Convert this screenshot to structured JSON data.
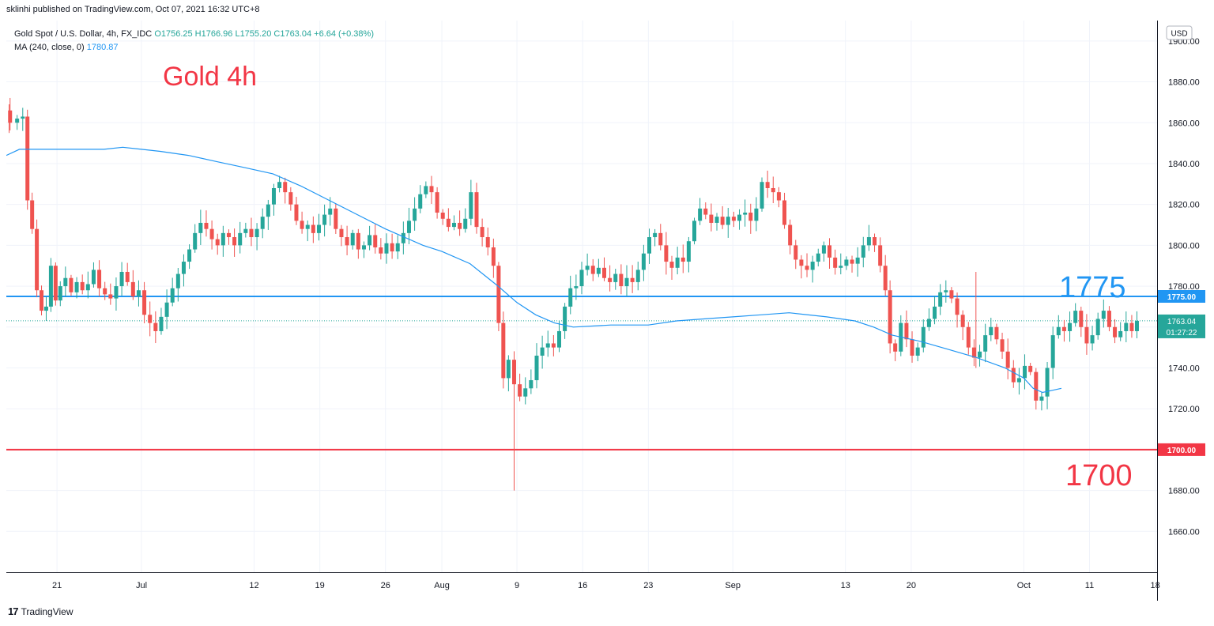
{
  "header": {
    "published": "sklinhi published on TradingView.com, Oct 07, 2021 16:32 UTC+8"
  },
  "legend": {
    "symbol": "Gold Spot / U.S. Dollar, 4h, FX_IDC",
    "ohlc": "O1756.25 H1766.96 L1755.20 C1763.04 +6.64 (+0.38%)",
    "ma_label": "MA (240, close, 0)",
    "ma_value": "1780.87"
  },
  "footer": {
    "logo": "17",
    "brand": "TradingView"
  },
  "colors": {
    "up": "#26a69a",
    "down": "#ef5350",
    "ma": "#2196f3",
    "line_blue": "#2196f3",
    "line_red": "#f23645",
    "grid": "#f0f3fa"
  },
  "chart_data": {
    "type": "candlestick",
    "title": "Gold 4h",
    "currency": "USD",
    "ylim": [
      1640,
      1910
    ],
    "y_ticks": [
      1660,
      1680,
      1700,
      1720,
      1740,
      1760,
      1780,
      1800,
      1820,
      1840,
      1860,
      1880,
      1900
    ],
    "y_tick_labels": [
      "1660.00",
      "1680.00",
      "1700.00",
      "1720.00",
      "1740.00",
      "1760.00",
      "1780.00",
      "1800.00",
      "1820.00",
      "1840.00",
      "1860.00",
      "1880.00",
      "1900.00"
    ],
    "x_ticks": [
      "21",
      "Jul",
      "12",
      "19",
      "26",
      "Aug",
      "9",
      "16",
      "23",
      "Sep",
      "13",
      "20",
      "Oct",
      "11",
      "18"
    ],
    "x_tick_values": [
      21,
      30,
      42,
      49,
      56,
      62,
      70,
      77,
      84,
      93,
      105,
      112,
      124,
      131,
      138
    ],
    "xlim": [
      15.6,
      138.2
    ],
    "x_unit": "day index (2021-06-01 = 1)",
    "last_price": "1763.04",
    "countdown": "01:27:22",
    "horizontal_lines": [
      {
        "price": 1775,
        "label": "1775",
        "axis_label": "1775.00",
        "color": "#2196f3"
      },
      {
        "price": 1700,
        "label": "1700",
        "axis_label": "1700.00",
        "color": "#f23645"
      }
    ],
    "ma_series": {
      "name": "MA (240, close, 0)",
      "points": [
        [
          15.6,
          1844
        ],
        [
          17,
          1847
        ],
        [
          19,
          1847
        ],
        [
          22,
          1847
        ],
        [
          26,
          1847
        ],
        [
          28,
          1848
        ],
        [
          30,
          1847
        ],
        [
          32,
          1846
        ],
        [
          35,
          1844
        ],
        [
          38,
          1841
        ],
        [
          41,
          1838
        ],
        [
          44,
          1835
        ],
        [
          47,
          1829
        ],
        [
          50,
          1822
        ],
        [
          53,
          1815
        ],
        [
          56,
          1808
        ],
        [
          60,
          1800
        ],
        [
          62,
          1797
        ],
        [
          65,
          1791
        ],
        [
          68,
          1780
        ],
        [
          70,
          1772
        ],
        [
          72,
          1766
        ],
        [
          74,
          1762
        ],
        [
          76,
          1760
        ],
        [
          80,
          1761
        ],
        [
          84,
          1761
        ],
        [
          87,
          1763
        ],
        [
          90,
          1764
        ],
        [
          93,
          1765
        ],
        [
          96,
          1766
        ],
        [
          99,
          1767
        ],
        [
          103,
          1765
        ],
        [
          106,
          1763
        ],
        [
          108,
          1760
        ],
        [
          110,
          1756
        ],
        [
          113,
          1753
        ],
        [
          116,
          1749
        ],
        [
          119,
          1745
        ],
        [
          122,
          1740
        ],
        [
          124,
          1735
        ],
        [
          125,
          1730
        ],
        [
          126,
          1728
        ],
        [
          127,
          1729
        ],
        [
          128,
          1730
        ]
      ]
    },
    "price_path": [
      [
        15.6,
        1866
      ],
      [
        16.4,
        1860
      ],
      [
        17.1,
        1862
      ],
      [
        17.6,
        1863
      ],
      [
        18.1,
        1822
      ],
      [
        18.6,
        1808
      ],
      [
        19.1,
        1778
      ],
      [
        19.6,
        1768
      ],
      [
        20.1,
        1770
      ],
      [
        20.6,
        1790
      ],
      [
        21.1,
        1773
      ],
      [
        21.6,
        1780
      ],
      [
        22.2,
        1784
      ],
      [
        22.8,
        1777
      ],
      [
        23.4,
        1782
      ],
      [
        24,
        1778
      ],
      [
        24.6,
        1781
      ],
      [
        25.2,
        1788
      ],
      [
        25.8,
        1779
      ],
      [
        26.4,
        1776
      ],
      [
        27,
        1774
      ],
      [
        27.6,
        1780
      ],
      [
        28.2,
        1787
      ],
      [
        28.8,
        1782
      ],
      [
        29.4,
        1775
      ],
      [
        30,
        1778
      ],
      [
        30.6,
        1766
      ],
      [
        31.2,
        1762
      ],
      [
        31.8,
        1758
      ],
      [
        32.4,
        1765
      ],
      [
        33,
        1772
      ],
      [
        33.6,
        1779
      ],
      [
        34.2,
        1786
      ],
      [
        34.8,
        1792
      ],
      [
        35.4,
        1798
      ],
      [
        36,
        1806
      ],
      [
        36.6,
        1811
      ],
      [
        37.2,
        1808
      ],
      [
        37.8,
        1803
      ],
      [
        38.4,
        1800
      ],
      [
        39,
        1806
      ],
      [
        39.6,
        1804
      ],
      [
        40.2,
        1800
      ],
      [
        40.8,
        1806
      ],
      [
        41.4,
        1808
      ],
      [
        42,
        1804
      ],
      [
        42.6,
        1808
      ],
      [
        43.2,
        1814
      ],
      [
        43.8,
        1820
      ],
      [
        44.4,
        1828
      ],
      [
        45,
        1831
      ],
      [
        45.6,
        1826
      ],
      [
        46.2,
        1820
      ],
      [
        46.8,
        1812
      ],
      [
        47.4,
        1808
      ],
      [
        48,
        1810
      ],
      [
        48.6,
        1806
      ],
      [
        49.2,
        1810
      ],
      [
        49.8,
        1815
      ],
      [
        50.4,
        1818
      ],
      [
        51,
        1808
      ],
      [
        51.6,
        1804
      ],
      [
        52.2,
        1800
      ],
      [
        52.8,
        1806
      ],
      [
        53.4,
        1798
      ],
      [
        54,
        1800
      ],
      [
        54.6,
        1805
      ],
      [
        55.2,
        1799
      ],
      [
        55.8,
        1796
      ],
      [
        56.4,
        1801
      ],
      [
        57,
        1797
      ],
      [
        57.6,
        1801
      ],
      [
        58.2,
        1806
      ],
      [
        58.8,
        1812
      ],
      [
        59.4,
        1818
      ],
      [
        60,
        1825
      ],
      [
        60.6,
        1829
      ],
      [
        61.2,
        1826
      ],
      [
        61.8,
        1816
      ],
      [
        62.4,
        1813
      ],
      [
        63,
        1809
      ],
      [
        63.6,
        1811
      ],
      [
        64.2,
        1808
      ],
      [
        64.8,
        1813
      ],
      [
        65.4,
        1826
      ],
      [
        66,
        1809
      ],
      [
        66.6,
        1804
      ],
      [
        67.2,
        1799
      ],
      [
        67.8,
        1790
      ],
      [
        68.3,
        1762
      ],
      [
        68.8,
        1735
      ],
      [
        69.4,
        1744
      ],
      [
        70,
        1732
      ],
      [
        70.6,
        1726
      ],
      [
        71.2,
        1730
      ],
      [
        71.8,
        1734
      ],
      [
        72.4,
        1746
      ],
      [
        73,
        1750
      ],
      [
        73.6,
        1752
      ],
      [
        74.2,
        1750
      ],
      [
        74.8,
        1758
      ],
      [
        75.4,
        1770
      ],
      [
        76,
        1779
      ],
      [
        76.6,
        1780
      ],
      [
        77.2,
        1788
      ],
      [
        77.8,
        1790
      ],
      [
        78.4,
        1786
      ],
      [
        79,
        1789
      ],
      [
        79.6,
        1784
      ],
      [
        80.2,
        1782
      ],
      [
        80.8,
        1786
      ],
      [
        81.4,
        1780
      ],
      [
        82,
        1784
      ],
      [
        82.6,
        1782
      ],
      [
        83.2,
        1788
      ],
      [
        83.8,
        1796
      ],
      [
        84.4,
        1804
      ],
      [
        85,
        1806
      ],
      [
        85.6,
        1800
      ],
      [
        86.2,
        1792
      ],
      [
        86.8,
        1789
      ],
      [
        87.4,
        1794
      ],
      [
        88,
        1792
      ],
      [
        88.6,
        1802
      ],
      [
        89.2,
        1812
      ],
      [
        89.8,
        1818
      ],
      [
        90.4,
        1815
      ],
      [
        91,
        1811
      ],
      [
        91.6,
        1814
      ],
      [
        92.2,
        1810
      ],
      [
        92.8,
        1814
      ],
      [
        93.4,
        1812
      ],
      [
        94,
        1815
      ],
      [
        94.6,
        1816
      ],
      [
        95.2,
        1812
      ],
      [
        95.8,
        1818
      ],
      [
        96.4,
        1831
      ],
      [
        97,
        1828
      ],
      [
        97.6,
        1826
      ],
      [
        98.2,
        1822
      ],
      [
        98.8,
        1810
      ],
      [
        99.4,
        1800
      ],
      [
        100,
        1793
      ],
      [
        100.6,
        1790
      ],
      [
        101.2,
        1788
      ],
      [
        101.8,
        1792
      ],
      [
        102.4,
        1796
      ],
      [
        103,
        1800
      ],
      [
        103.6,
        1794
      ],
      [
        104.2,
        1789
      ],
      [
        104.8,
        1790
      ],
      [
        105.4,
        1793
      ],
      [
        106,
        1791
      ],
      [
        106.6,
        1794
      ],
      [
        107.2,
        1800
      ],
      [
        107.8,
        1804
      ],
      [
        108.4,
        1800
      ],
      [
        109,
        1790
      ],
      [
        109.5,
        1778
      ],
      [
        110,
        1752
      ],
      [
        110.6,
        1748
      ],
      [
        111.2,
        1762
      ],
      [
        111.8,
        1754
      ],
      [
        112.4,
        1746
      ],
      [
        113,
        1750
      ],
      [
        113.6,
        1760
      ],
      [
        114.2,
        1764
      ],
      [
        114.8,
        1770
      ],
      [
        115.4,
        1777
      ],
      [
        116,
        1778
      ],
      [
        116.6,
        1774
      ],
      [
        117.2,
        1766
      ],
      [
        117.8,
        1760
      ],
      [
        118.4,
        1750
      ],
      [
        119,
        1745
      ],
      [
        119.6,
        1748
      ],
      [
        120.2,
        1756
      ],
      [
        120.8,
        1760
      ],
      [
        121.4,
        1754
      ],
      [
        122,
        1748
      ],
      [
        122.6,
        1740
      ],
      [
        123.2,
        1733
      ],
      [
        123.8,
        1735
      ],
      [
        124.4,
        1741
      ],
      [
        125,
        1738
      ],
      [
        125.6,
        1724
      ],
      [
        126.2,
        1726
      ],
      [
        126.8,
        1740
      ],
      [
        127.4,
        1756
      ],
      [
        128,
        1760
      ],
      [
        128.6,
        1758
      ],
      [
        129.2,
        1762
      ],
      [
        129.8,
        1768
      ],
      [
        130.4,
        1760
      ],
      [
        131,
        1752
      ],
      [
        131.6,
        1756
      ],
      [
        132.2,
        1764
      ],
      [
        132.8,
        1768
      ],
      [
        133.4,
        1760
      ],
      [
        134,
        1755
      ],
      [
        134.6,
        1758
      ],
      [
        135.2,
        1762
      ],
      [
        135.8,
        1758
      ],
      [
        136.3,
        1763.04
      ]
    ],
    "wicks": [
      {
        "x": 69.7,
        "low": 1680,
        "high": 1744
      },
      {
        "x": 118.9,
        "low": 1740,
        "high": 1787
      },
      {
        "x": 15.9,
        "low": 1855,
        "high": 1869
      }
    ],
    "annotations": [
      {
        "text": "Gold 4h",
        "color": "#f23645"
      },
      {
        "text": "1775",
        "color": "#2196f3"
      },
      {
        "text": "1700",
        "color": "#f23645"
      }
    ]
  }
}
